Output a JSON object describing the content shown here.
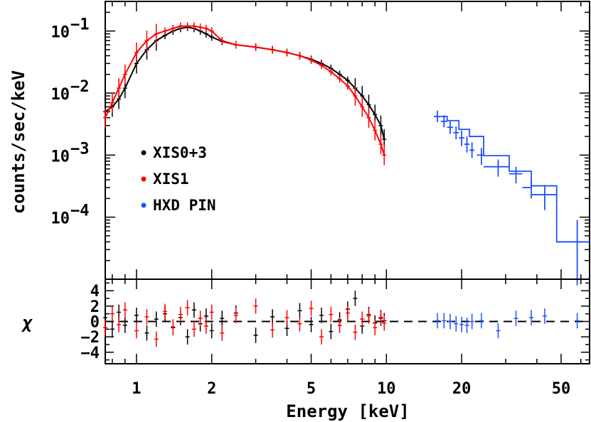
{
  "chart_data": [
    {
      "type": "scatter",
      "xscale": "log",
      "yscale": "log",
      "xlim": [
        0.75,
        65
      ],
      "ylim": [
        1e-05,
        0.3
      ],
      "ylabel": "counts/sec/keV",
      "y_tick_labels": [
        {
          "v": 0.1,
          "base": "10",
          "exp": "−1"
        },
        {
          "v": 0.01,
          "base": "10",
          "exp": "−2"
        },
        {
          "v": 0.001,
          "base": "10",
          "exp": "−3"
        },
        {
          "v": 0.0001,
          "base": "10",
          "exp": "−4"
        }
      ],
      "legend": {
        "placement": "left-middle",
        "entries": [
          {
            "label": "XIS0+3",
            "color": "#000000"
          },
          {
            "label": "XIS1",
            "color": "#ff0000"
          },
          {
            "label": "HXD PIN",
            "color": "#2050ff"
          }
        ]
      },
      "series": [
        {
          "name": "XIS0+3",
          "color": "#000000",
          "x": [
            0.75,
            0.8,
            0.85,
            0.9,
            1.0,
            1.1,
            1.2,
            1.3,
            1.4,
            1.5,
            1.6,
            1.7,
            1.8,
            1.9,
            2.0,
            2.2,
            2.5,
            3.0,
            3.5,
            4.0,
            4.5,
            5.0,
            5.5,
            6.0,
            6.5,
            7.0,
            7.5,
            8.0,
            8.5,
            9.0,
            9.5,
            9.8
          ],
          "y": [
            0.005,
            0.006,
            0.008,
            0.012,
            0.03,
            0.05,
            0.07,
            0.085,
            0.1,
            0.11,
            0.115,
            0.11,
            0.1,
            0.09,
            0.08,
            0.068,
            0.06,
            0.055,
            0.05,
            0.045,
            0.04,
            0.035,
            0.03,
            0.025,
            0.02,
            0.016,
            0.012,
            0.009,
            0.0065,
            0.0045,
            0.003,
            0.0018
          ]
        },
        {
          "name": "XIS1",
          "color": "#ff0000",
          "x": [
            0.75,
            0.8,
            0.85,
            0.9,
            1.0,
            1.1,
            1.2,
            1.3,
            1.4,
            1.5,
            1.6,
            1.7,
            1.8,
            1.9,
            2.0,
            2.2,
            2.5,
            3.0,
            3.5,
            4.0,
            4.5,
            5.0,
            5.5,
            6.0,
            6.5,
            7.0,
            7.5,
            8.0,
            8.5,
            9.0,
            9.5,
            9.8
          ],
          "y": [
            0.004,
            0.007,
            0.012,
            0.02,
            0.045,
            0.07,
            0.09,
            0.1,
            0.11,
            0.12,
            0.12,
            0.12,
            0.115,
            0.11,
            0.1,
            0.07,
            0.06,
            0.055,
            0.05,
            0.045,
            0.04,
            0.034,
            0.028,
            0.022,
            0.017,
            0.013,
            0.009,
            0.006,
            0.004,
            0.0025,
            0.0015,
            0.001
          ]
        },
        {
          "name": "HXD PIN",
          "color": "#2050ff",
          "x": [
            16,
            17,
            18,
            19,
            20,
            21,
            22,
            24,
            28,
            33,
            38,
            43,
            58
          ],
          "xerr_low": [
            15.5,
            16.5,
            17.5,
            18.5,
            19.5,
            20.5,
            21.5,
            23,
            24.5,
            31,
            35,
            38,
            48
          ],
          "xerr_high": [
            16.5,
            17.5,
            18.5,
            19.5,
            20.5,
            21.5,
            22.5,
            24.5,
            31,
            35,
            38,
            48,
            65
          ],
          "y": [
            0.0042,
            0.0035,
            0.0028,
            0.0023,
            0.0019,
            0.0015,
            0.0012,
            0.001,
            0.00065,
            0.0005,
            0.0003,
            0.00023,
            4e-05
          ],
          "yerr_low": [
            0.0034,
            0.0028,
            0.0022,
            0.0018,
            0.0014,
            0.0011,
            0.0009,
            0.0007,
            0.00045,
            0.00035,
            0.0002,
            0.00013,
            8e-06
          ],
          "yerr_high": [
            0.0052,
            0.0044,
            0.0035,
            0.0029,
            0.0025,
            0.002,
            0.0016,
            0.0013,
            0.00085,
            0.00065,
            0.0004,
            0.00033,
            9e-05
          ],
          "model_step": [
            [
              15.5,
              0.0042
            ],
            [
              17.5,
              0.0036
            ],
            [
              19.5,
              0.0026
            ],
            [
              21.5,
              0.002
            ],
            [
              24.5,
              0.00098
            ],
            [
              31,
              0.00055
            ],
            [
              38,
              0.00032
            ],
            [
              48,
              4e-05
            ],
            [
              65,
              4e-05
            ]
          ]
        }
      ]
    },
    {
      "type": "scatter",
      "xscale": "log",
      "xlim": [
        0.75,
        65
      ],
      "ylim": [
        -5.5,
        5.5
      ],
      "ylabel": "χ",
      "xlabel": "Energy [keV]",
      "x_tick_labels": [
        "1",
        "2",
        "5",
        "10",
        "20",
        "50"
      ],
      "x_tick_values": [
        1,
        2,
        5,
        10,
        20,
        50
      ],
      "y_tick_labels": [
        "−4",
        "−2",
        "0",
        "2",
        "4"
      ],
      "y_tick_values": [
        -4,
        -2,
        0,
        2,
        4
      ],
      "reference_line": 0,
      "series": [
        {
          "name": "XIS0+3",
          "color": "#000000",
          "x": [
            0.75,
            0.8,
            0.85,
            0.9,
            1.0,
            1.1,
            1.2,
            1.3,
            1.4,
            1.5,
            1.6,
            1.7,
            1.8,
            1.9,
            2.0,
            2.2,
            2.5,
            3.0,
            3.5,
            4.0,
            4.5,
            5.0,
            5.5,
            6.0,
            6.5,
            7.0,
            7.5,
            8.0,
            8.5,
            9.0,
            9.5,
            9.8
          ],
          "y": [
            0.5,
            -1.0,
            1.2,
            -0.5,
            0.8,
            -1.5,
            0.3,
            1.0,
            -0.8,
            0.5,
            -2.0,
            1.5,
            -0.3,
            0.7,
            -1.2,
            0.4,
            1.1,
            -1.8,
            0.6,
            -0.9,
            1.4,
            -0.4,
            0.8,
            -1.3,
            0.2,
            1.6,
            3.0,
            -0.6,
            0.9,
            -0.2,
            0.5,
            0.1
          ]
        },
        {
          "name": "XIS1",
          "color": "#ff0000",
          "x": [
            0.75,
            0.8,
            0.85,
            0.9,
            1.0,
            1.1,
            1.2,
            1.3,
            1.4,
            1.5,
            1.6,
            1.7,
            1.8,
            1.9,
            2.0,
            2.2,
            2.5,
            3.0,
            3.5,
            4.0,
            4.5,
            5.0,
            5.5,
            6.0,
            6.5,
            7.0,
            7.5,
            8.0,
            8.5,
            9.0,
            9.5,
            9.8
          ],
          "y": [
            -0.8,
            1.0,
            -0.4,
            1.5,
            -1.2,
            0.6,
            -2.3,
            1.3,
            -0.7,
            0.9,
            1.8,
            -1.0,
            0.4,
            -0.6,
            1.2,
            -1.5,
            0.8,
            2.0,
            -1.1,
            0.5,
            -0.3,
            1.7,
            -2.0,
            0.9,
            -0.5,
            1.1,
            -1.4,
            0.3,
            0.7,
            -0.8,
            0.4,
            -0.2
          ]
        },
        {
          "name": "HXD PIN",
          "color": "#2050ff",
          "x": [
            16,
            17,
            18,
            19,
            20,
            21,
            22,
            24,
            28,
            33,
            38,
            43,
            58
          ],
          "y": [
            0.1,
            0.1,
            0.0,
            -0.3,
            -0.4,
            -0.5,
            0.0,
            0.1,
            -1.2,
            0.4,
            0.5,
            0.7,
            0.1
          ]
        }
      ]
    }
  ]
}
